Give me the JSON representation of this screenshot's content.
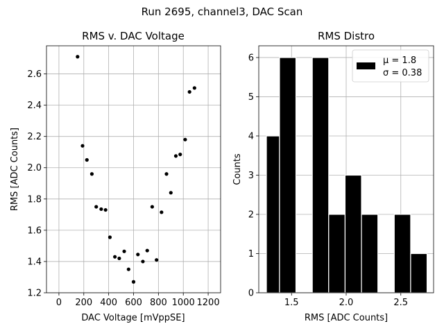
{
  "suptitle": "Run 2695, channel3, DAC Scan",
  "chart_data": [
    {
      "type": "scatter",
      "title": "RMS v. DAC Voltage",
      "xlabel": "DAC Voltage [mVppSE]",
      "ylabel": "RMS [ADC Counts]",
      "xlim": [
        -100,
        1300
      ],
      "ylim": [
        1.2,
        2.78
      ],
      "xticks": [
        0,
        200,
        400,
        600,
        800,
        1000,
        1200
      ],
      "yticks": [
        1.2,
        1.4,
        1.6,
        1.8,
        2.0,
        2.2,
        2.4,
        2.6
      ],
      "xtick_labels": [
        "0",
        "200",
        "400",
        "600",
        "800",
        "1000",
        "1200"
      ],
      "ytick_labels": [
        "1.2",
        "1.4",
        "1.6",
        "1.8",
        "2.0",
        "2.2",
        "2.4",
        "2.6"
      ],
      "grid": true,
      "marker_color": "#000000",
      "points": [
        {
          "x": 150,
          "y": 2.71
        },
        {
          "x": 190,
          "y": 2.14
        },
        {
          "x": 225,
          "y": 2.05
        },
        {
          "x": 265,
          "y": 1.96
        },
        {
          "x": 300,
          "y": 1.75
        },
        {
          "x": 340,
          "y": 1.735
        },
        {
          "x": 375,
          "y": 1.73
        },
        {
          "x": 410,
          "y": 1.555
        },
        {
          "x": 450,
          "y": 1.43
        },
        {
          "x": 485,
          "y": 1.42
        },
        {
          "x": 525,
          "y": 1.465
        },
        {
          "x": 560,
          "y": 1.35
        },
        {
          "x": 600,
          "y": 1.27
        },
        {
          "x": 635,
          "y": 1.445
        },
        {
          "x": 675,
          "y": 1.4
        },
        {
          "x": 710,
          "y": 1.47
        },
        {
          "x": 750,
          "y": 1.75
        },
        {
          "x": 785,
          "y": 1.41
        },
        {
          "x": 825,
          "y": 1.715
        },
        {
          "x": 865,
          "y": 1.96
        },
        {
          "x": 900,
          "y": 1.84
        },
        {
          "x": 940,
          "y": 2.075
        },
        {
          "x": 975,
          "y": 2.085
        },
        {
          "x": 1015,
          "y": 2.18
        },
        {
          "x": 1050,
          "y": 2.485
        },
        {
          "x": 1090,
          "y": 2.51
        }
      ]
    },
    {
      "type": "bar",
      "title": "RMS Distro",
      "xlabel": "RMS [ADC Counts]",
      "ylabel": "Counts",
      "xlim": [
        1.2,
        2.8
      ],
      "ylim": [
        0,
        6.3
      ],
      "xticks": [
        1.5,
        2.0,
        2.5
      ],
      "yticks": [
        0,
        1,
        2,
        3,
        4,
        5,
        6
      ],
      "xtick_labels": [
        "1.5",
        "2.0",
        "2.5"
      ],
      "ytick_labels": [
        "0",
        "1",
        "2",
        "3",
        "4",
        "5",
        "6"
      ],
      "grid": true,
      "bar_color": "#000000",
      "bar_edge_color": "#ffffff",
      "legend": {
        "placement": "top-right",
        "lines": [
          "μ = 1.8",
          "σ = 0.38"
        ]
      },
      "bars": [
        {
          "left": 1.27,
          "right": 1.39,
          "value": 4
        },
        {
          "left": 1.39,
          "right": 1.54,
          "value": 6
        },
        {
          "left": 1.69,
          "right": 1.84,
          "value": 6
        },
        {
          "left": 1.84,
          "right": 1.99,
          "value": 2
        },
        {
          "left": 1.99,
          "right": 2.14,
          "value": 3
        },
        {
          "left": 2.14,
          "right": 2.29,
          "value": 2
        },
        {
          "left": 2.44,
          "right": 2.59,
          "value": 2
        },
        {
          "left": 2.59,
          "right": 2.74,
          "value": 1
        }
      ]
    }
  ]
}
